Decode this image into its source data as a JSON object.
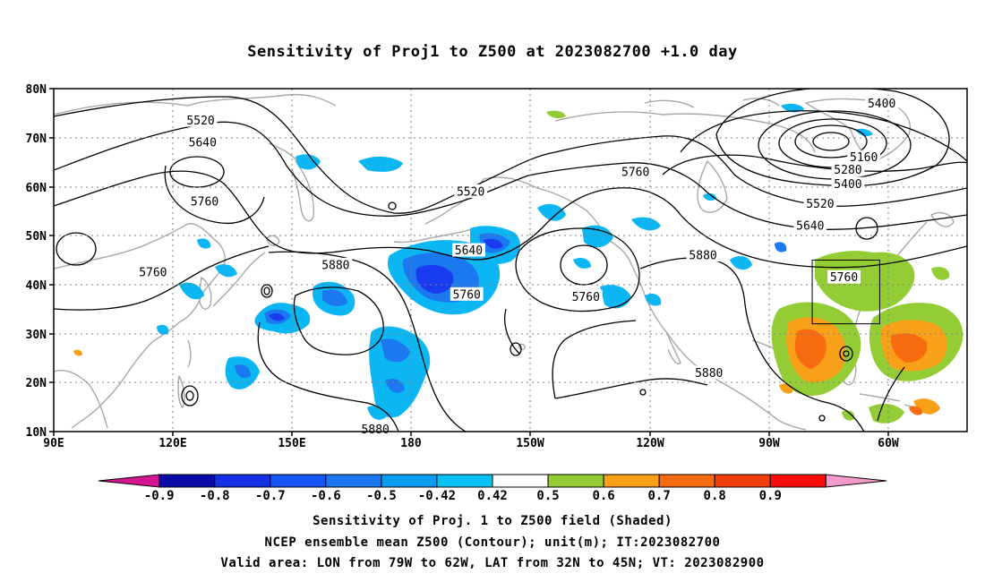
{
  "title": "Sensitivity of Proj1 to Z500 at 2023082700 +1.0 day",
  "map": {
    "lon_ticks": [
      "90E",
      "120E",
      "150E",
      "180",
      "150W",
      "120W",
      "90W",
      "60W"
    ],
    "lat_ticks": [
      "80N",
      "70N",
      "60N",
      "50N",
      "40N",
      "30N",
      "20N",
      "10N"
    ],
    "lon_range": [
      90,
      320
    ],
    "lat_range": [
      10,
      80
    ],
    "grid": "dotted",
    "valid_area_box": {
      "lon": [
        -79,
        -62
      ],
      "lat": [
        32,
        45
      ]
    },
    "contour_units": "m",
    "contour_labels": [
      {
        "text": "5520",
        "lon": 127,
        "lat": 73.5
      },
      {
        "text": "5640",
        "lon": 127.5,
        "lat": 69
      },
      {
        "text": "5760",
        "lon": 128,
        "lat": 57
      },
      {
        "text": "5760",
        "lon": 115,
        "lat": 42.5
      },
      {
        "text": "5880",
        "lon": 161,
        "lat": 44
      },
      {
        "text": "5520",
        "lon": 195,
        "lat": 59
      },
      {
        "text": "5640",
        "lon": 194.5,
        "lat": 47
      },
      {
        "text": "5760",
        "lon": 194,
        "lat": 38
      },
      {
        "text": "5760",
        "lon": 224,
        "lat": 37.5
      },
      {
        "text": "5760",
        "lon": 236.5,
        "lat": 63
      },
      {
        "text": "5880",
        "lon": 253.5,
        "lat": 46
      },
      {
        "text": "5880",
        "lon": 255,
        "lat": 22
      },
      {
        "text": "5880",
        "lon": 171,
        "lat": 10.5
      },
      {
        "text": "5400",
        "lon": 298.5,
        "lat": 77
      },
      {
        "text": "5160",
        "lon": 294,
        "lat": 66
      },
      {
        "text": "5280",
        "lon": 290,
        "lat": 63.5
      },
      {
        "text": "5400",
        "lon": 290,
        "lat": 60.5
      },
      {
        "text": "5520",
        "lon": 283,
        "lat": 56.5
      },
      {
        "text": "5640",
        "lon": 280.5,
        "lat": 52
      },
      {
        "text": "5760",
        "lon": 289,
        "lat": 41.5
      }
    ]
  },
  "colorbar": {
    "tick_labels": [
      "-0.9",
      "-0.8",
      "-0.7",
      "-0.6",
      "-0.5",
      "-0.42",
      "0.42",
      "0.5",
      "0.6",
      "0.7",
      "0.8",
      "0.9"
    ],
    "colors": [
      "#d6168f",
      "#0a0aa8",
      "#1531e6",
      "#1554f2",
      "#1b78ee",
      "#0b9bf1",
      "#07c2f4",
      "#ffffff",
      "#94cc36",
      "#f7a018",
      "#f76b11",
      "#f33f0e",
      "#ff0a0a",
      "#f49acb"
    ]
  },
  "shading_colors": {
    "neg_strong": "#1a3cf0",
    "neg_mid": "#1b78ee",
    "neg_weak": "#0cb6f2",
    "pos_weak": "#94cc36",
    "pos_mid": "#f7a018",
    "pos_strong": "#f76b11",
    "coast": "#a8a8a8"
  },
  "footer": {
    "line1": "Sensitivity of Proj. 1 to Z500 field (Shaded)",
    "line2": "NCEP ensemble mean Z500 (Contour); unit(m); IT:2023082700",
    "line3": "Valid area: LON from 79W to 62W, LAT from 32N to 45N; VT: 2023082900"
  }
}
